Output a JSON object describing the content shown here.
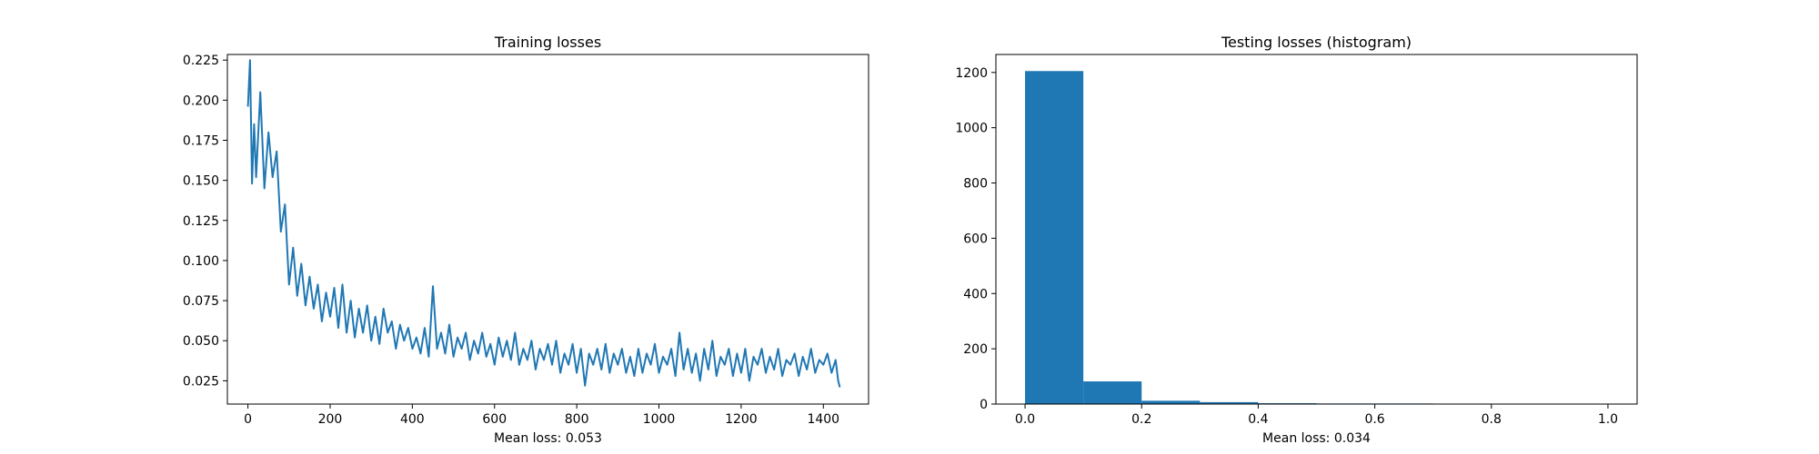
{
  "chart_data": [
    {
      "type": "line",
      "title": "Training losses",
      "xlabel": "Mean loss: 0.053",
      "ylabel": "",
      "xlim": [
        -50,
        1510
      ],
      "ylim": [
        0.0105,
        0.2285
      ],
      "xticks": [
        0,
        200,
        400,
        600,
        800,
        1000,
        1200,
        1400
      ],
      "yticks": [
        0.025,
        0.05,
        0.075,
        0.1,
        0.125,
        0.15,
        0.175,
        0.2,
        0.225
      ],
      "xtick_labels": [
        "0",
        "200",
        "400",
        "600",
        "800",
        "1000",
        "1200",
        "1400"
      ],
      "ytick_labels": [
        "0.025",
        "0.050",
        "0.075",
        "0.100",
        "0.125",
        "0.150",
        "0.175",
        "0.200",
        "0.225"
      ],
      "grid": false,
      "color": "#1f77b4",
      "series": [
        {
          "x": [
            0,
            5,
            10,
            15,
            20,
            30,
            40,
            50,
            60,
            70,
            80,
            90,
            100,
            110,
            120,
            130,
            140,
            150,
            160,
            170,
            180,
            190,
            200,
            210,
            220,
            230,
            240,
            250,
            260,
            270,
            280,
            290,
            300,
            310,
            320,
            330,
            340,
            350,
            360,
            370,
            380,
            390,
            400,
            410,
            420,
            430,
            440,
            450,
            460,
            470,
            480,
            490,
            500,
            510,
            520,
            530,
            540,
            550,
            560,
            570,
            580,
            590,
            600,
            610,
            620,
            630,
            640,
            650,
            660,
            670,
            680,
            690,
            700,
            710,
            720,
            730,
            740,
            750,
            760,
            770,
            780,
            790,
            800,
            810,
            820,
            830,
            840,
            850,
            860,
            870,
            880,
            890,
            900,
            910,
            920,
            930,
            940,
            950,
            960,
            970,
            980,
            990,
            1000,
            1010,
            1020,
            1030,
            1040,
            1050,
            1060,
            1070,
            1080,
            1090,
            1100,
            1110,
            1120,
            1130,
            1140,
            1150,
            1160,
            1170,
            1180,
            1190,
            1200,
            1210,
            1220,
            1230,
            1240,
            1250,
            1260,
            1270,
            1280,
            1290,
            1300,
            1310,
            1320,
            1330,
            1340,
            1350,
            1360,
            1370,
            1380,
            1390,
            1400,
            1410,
            1420,
            1430,
            1436,
            1440
          ],
          "y": [
            0.196,
            0.225,
            0.148,
            0.185,
            0.152,
            0.205,
            0.145,
            0.18,
            0.152,
            0.168,
            0.118,
            0.135,
            0.085,
            0.108,
            0.078,
            0.098,
            0.072,
            0.09,
            0.07,
            0.085,
            0.062,
            0.08,
            0.065,
            0.083,
            0.058,
            0.085,
            0.055,
            0.075,
            0.052,
            0.07,
            0.055,
            0.072,
            0.05,
            0.065,
            0.048,
            0.07,
            0.055,
            0.062,
            0.045,
            0.06,
            0.05,
            0.058,
            0.045,
            0.052,
            0.042,
            0.058,
            0.04,
            0.084,
            0.045,
            0.055,
            0.042,
            0.06,
            0.04,
            0.052,
            0.045,
            0.055,
            0.038,
            0.05,
            0.042,
            0.055,
            0.04,
            0.048,
            0.035,
            0.052,
            0.04,
            0.05,
            0.038,
            0.055,
            0.035,
            0.045,
            0.038,
            0.05,
            0.032,
            0.045,
            0.038,
            0.048,
            0.035,
            0.05,
            0.03,
            0.042,
            0.035,
            0.048,
            0.03,
            0.045,
            0.022,
            0.042,
            0.035,
            0.045,
            0.032,
            0.048,
            0.03,
            0.042,
            0.035,
            0.045,
            0.03,
            0.04,
            0.028,
            0.045,
            0.03,
            0.042,
            0.035,
            0.048,
            0.03,
            0.04,
            0.035,
            0.045,
            0.028,
            0.055,
            0.032,
            0.045,
            0.03,
            0.042,
            0.025,
            0.045,
            0.032,
            0.05,
            0.028,
            0.04,
            0.035,
            0.045,
            0.028,
            0.042,
            0.03,
            0.045,
            0.025,
            0.04,
            0.035,
            0.045,
            0.03,
            0.04,
            0.032,
            0.045,
            0.028,
            0.038,
            0.035,
            0.042,
            0.028,
            0.04,
            0.032,
            0.045,
            0.03,
            0.038,
            0.035,
            0.042,
            0.03,
            0.038,
            0.025,
            0.021
          ]
        }
      ]
    },
    {
      "type": "bar",
      "title": "Testing losses (histogram)",
      "xlabel": "Mean loss: 0.034",
      "ylabel": "",
      "xlim": [
        -0.05,
        1.05
      ],
      "ylim": [
        0,
        1265
      ],
      "xticks": [
        0,
        0.2,
        0.4,
        0.6,
        0.8,
        1.0
      ],
      "yticks": [
        0,
        200,
        400,
        600,
        800,
        1000,
        1200
      ],
      "xtick_labels": [
        "0.0",
        "0.2",
        "0.4",
        "0.6",
        "0.8",
        "1.0"
      ],
      "ytick_labels": [
        "0",
        "200",
        "400",
        "600",
        "800",
        "1000",
        "1200"
      ],
      "grid": false,
      "color": "#1f77b4",
      "bins": [
        {
          "start": 0.0,
          "end": 0.1,
          "count": 1205
        },
        {
          "start": 0.1,
          "end": 0.2,
          "count": 82
        },
        {
          "start": 0.2,
          "end": 0.3,
          "count": 12
        },
        {
          "start": 0.3,
          "end": 0.4,
          "count": 7
        },
        {
          "start": 0.4,
          "end": 0.5,
          "count": 3
        },
        {
          "start": 0.5,
          "end": 0.6,
          "count": 2
        },
        {
          "start": 0.6,
          "end": 0.7,
          "count": 2
        },
        {
          "start": 0.7,
          "end": 0.8,
          "count": 1
        },
        {
          "start": 0.8,
          "end": 0.9,
          "count": 1
        },
        {
          "start": 0.9,
          "end": 1.0,
          "count": 1
        }
      ]
    }
  ]
}
